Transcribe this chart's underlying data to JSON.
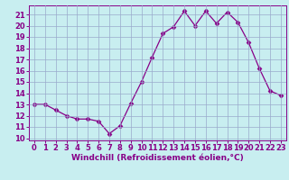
{
  "x": [
    0,
    1,
    2,
    3,
    4,
    5,
    6,
    7,
    8,
    9,
    10,
    11,
    12,
    13,
    14,
    15,
    16,
    17,
    18,
    19,
    20,
    21,
    22,
    23
  ],
  "y": [
    13.0,
    13.0,
    12.5,
    12.0,
    11.7,
    11.7,
    11.5,
    10.4,
    11.1,
    13.1,
    15.0,
    17.2,
    19.3,
    19.9,
    21.3,
    20.0,
    21.3,
    20.2,
    21.2,
    20.3,
    18.5,
    16.2,
    14.2,
    13.8
  ],
  "xlabel": "Windchill (Refroidissement éolien,°C)",
  "xlim": [
    -0.5,
    23.5
  ],
  "ylim": [
    9.8,
    21.8
  ],
  "yticks": [
    10,
    11,
    12,
    13,
    14,
    15,
    16,
    17,
    18,
    19,
    20,
    21
  ],
  "xticks": [
    0,
    1,
    2,
    3,
    4,
    5,
    6,
    7,
    8,
    9,
    10,
    11,
    12,
    13,
    14,
    15,
    16,
    17,
    18,
    19,
    20,
    21,
    22,
    23
  ],
  "line_color": "#880088",
  "marker": "D",
  "marker_size": 2.5,
  "bg_color": "#c8eef0",
  "grid_color": "#99aacc",
  "label_fontsize": 6.5,
  "tick_fontsize": 6
}
